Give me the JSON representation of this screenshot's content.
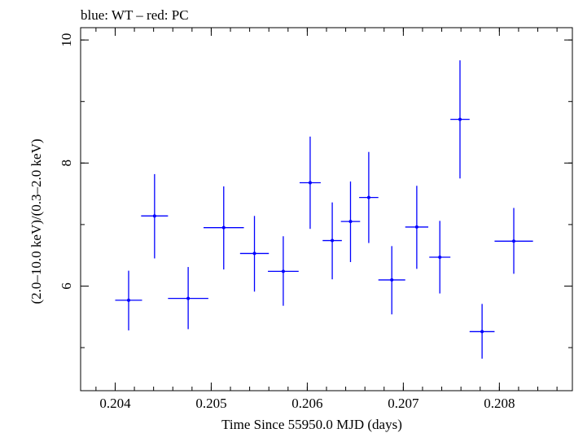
{
  "chart_data": {
    "type": "scatter",
    "title": "blue: WT – red: PC",
    "xlabel": "Time Since 55950.0 MJD (days)",
    "ylabel": "(2.0–10.0 keV)/(0.3–2.0 keV)",
    "xlim": [
      0.20364,
      0.20876
    ],
    "ylim": [
      4.3,
      10.2
    ],
    "x_ticks": [
      {
        "value": 0.204,
        "label": "0.204"
      },
      {
        "value": 0.205,
        "label": "0.205"
      },
      {
        "value": 0.206,
        "label": "0.206"
      },
      {
        "value": 0.207,
        "label": "0.207"
      },
      {
        "value": 0.208,
        "label": "0.208"
      }
    ],
    "y_ticks": [
      {
        "value": 6,
        "label": "6"
      },
      {
        "value": 8,
        "label": "8"
      },
      {
        "value": 10,
        "label": "10"
      }
    ],
    "x_minor_step": 0.0002,
    "y_minor_step": 1,
    "grid": false,
    "series": [
      {
        "color": "#0000ff",
        "points": [
          {
            "x": 0.20414,
            "y": 5.77,
            "xerr": 0.00014,
            "ylo": 5.28,
            "yhi": 6.25
          },
          {
            "x": 0.20441,
            "y": 7.14,
            "xerr": 0.00014,
            "ylo": 6.45,
            "yhi": 7.82
          },
          {
            "x": 0.20476,
            "y": 5.8,
            "xerr": 0.00021,
            "ylo": 5.3,
            "yhi": 6.31
          },
          {
            "x": 0.20513,
            "y": 6.95,
            "xerr": 0.00021,
            "ylo": 6.27,
            "yhi": 7.62
          },
          {
            "x": 0.20545,
            "y": 6.53,
            "xerr": 0.00015,
            "ylo": 5.91,
            "yhi": 7.14
          },
          {
            "x": 0.20575,
            "y": 6.24,
            "xerr": 0.00016,
            "ylo": 5.68,
            "yhi": 6.81
          },
          {
            "x": 0.20603,
            "y": 7.68,
            "xerr": 0.00011,
            "ylo": 6.93,
            "yhi": 8.43
          },
          {
            "x": 0.20626,
            "y": 6.74,
            "xerr": 0.0001,
            "ylo": 6.11,
            "yhi": 7.36
          },
          {
            "x": 0.20645,
            "y": 7.05,
            "xerr": 0.0001,
            "ylo": 6.39,
            "yhi": 7.7
          },
          {
            "x": 0.20664,
            "y": 7.44,
            "xerr": 0.0001,
            "ylo": 6.7,
            "yhi": 8.18
          },
          {
            "x": 0.20688,
            "y": 6.1,
            "xerr": 0.00014,
            "ylo": 5.54,
            "yhi": 6.65
          },
          {
            "x": 0.20714,
            "y": 6.96,
            "xerr": 0.00012,
            "ylo": 6.28,
            "yhi": 7.63
          },
          {
            "x": 0.20738,
            "y": 6.47,
            "xerr": 0.00011,
            "ylo": 5.88,
            "yhi": 7.06
          },
          {
            "x": 0.20759,
            "y": 8.71,
            "xerr": 0.0001,
            "ylo": 7.75,
            "yhi": 9.67
          },
          {
            "x": 0.20782,
            "y": 5.26,
            "xerr": 0.00013,
            "ylo": 4.82,
            "yhi": 5.71
          },
          {
            "x": 0.20815,
            "y": 6.73,
            "xerr": 0.0002,
            "ylo": 6.2,
            "yhi": 7.27
          }
        ]
      }
    ]
  }
}
